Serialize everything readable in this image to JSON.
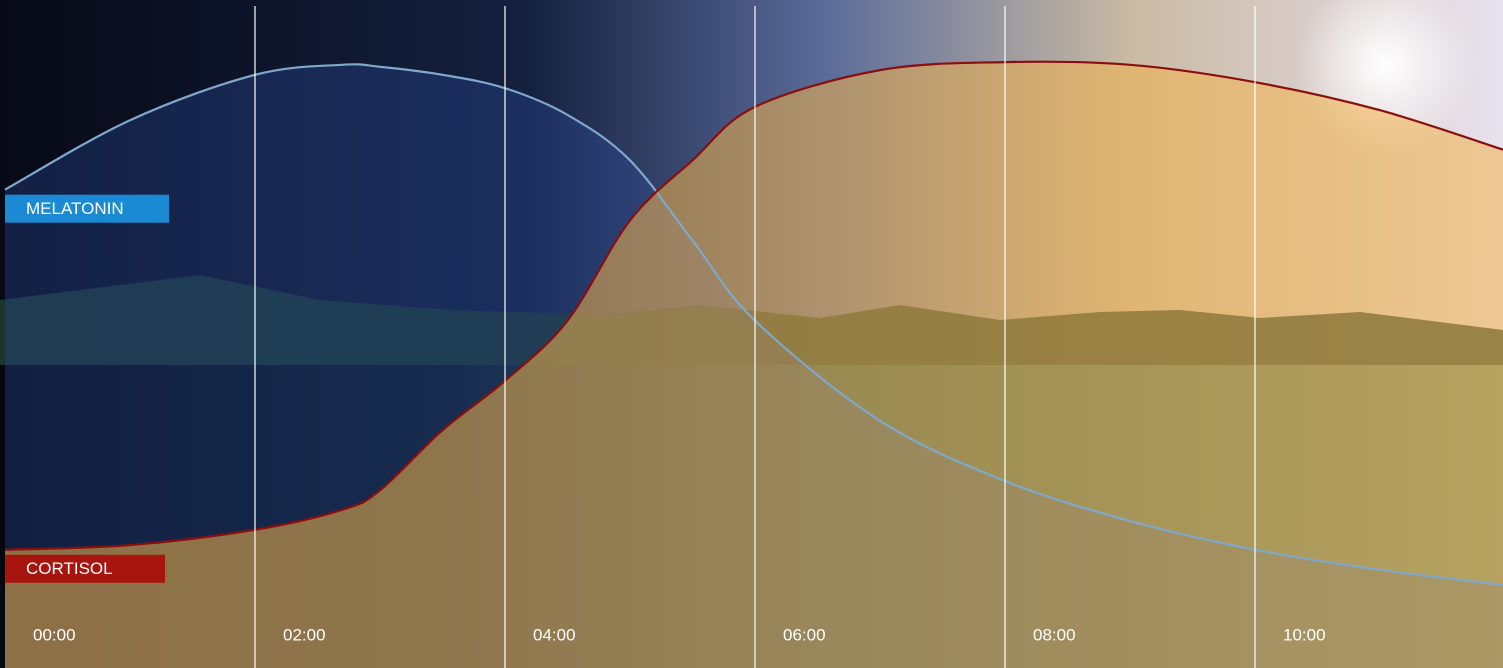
{
  "chart_data": {
    "type": "area",
    "x": [
      0,
      1,
      2,
      2.7,
      3,
      3.5,
      4,
      4.5,
      5,
      5.5,
      6,
      7,
      8,
      9,
      10,
      11,
      12
    ],
    "xlim": [
      0,
      12
    ],
    "xticks": [
      {
        "value": 0,
        "label": "00:00"
      },
      {
        "value": 2,
        "label": "02:00"
      },
      {
        "value": 4,
        "label": "04:00"
      },
      {
        "value": 6,
        "label": "06:00"
      },
      {
        "value": 8,
        "label": "08:00"
      },
      {
        "value": 10,
        "label": "10:00"
      }
    ],
    "ylim": [
      0,
      100
    ],
    "grid": true,
    "series": [
      {
        "name": "MELATONIN",
        "color": "#1a8ad4",
        "line_color": "#7fa8cc",
        "fill": "#2a4a9a",
        "values": [
          71.6,
          82,
          88.8,
          90.3,
          90,
          88.8,
          86.8,
          82.8,
          76,
          64,
          52,
          37,
          28,
          22,
          17.7,
          14.7,
          12.4
        ]
      },
      {
        "name": "CORTISOL",
        "color": "#a8140e",
        "line_color": "#8b0e0e",
        "fill": "#f2b24a",
        "values": [
          17.7,
          18.4,
          20.7,
          23.7,
          26.6,
          35.6,
          43,
          52,
          67,
          76,
          84,
          89.5,
          90.7,
          90.3,
          87.7,
          83.5,
          77.5
        ]
      }
    ]
  }
}
